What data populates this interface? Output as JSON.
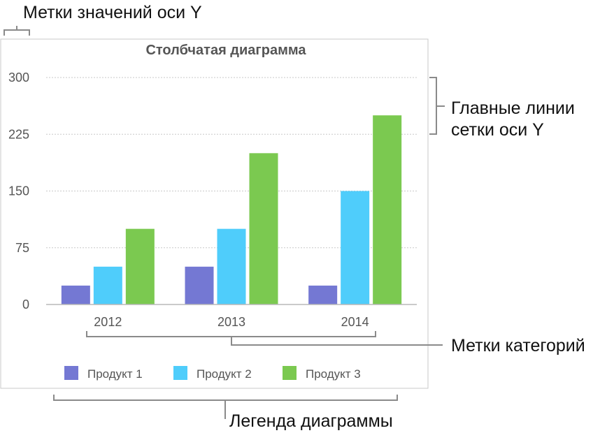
{
  "annotations": {
    "y_value_labels": "Метки значений оси Y",
    "y_gridlines_line1": "Главные линии",
    "y_gridlines_line2": "сетки оси Y",
    "category_labels": "Метки категорий",
    "chart_legend": "Легенда диаграммы"
  },
  "colors": {
    "series": [
      "#7478d3",
      "#4fcdfb",
      "#7bc950"
    ],
    "grid": "#c8c8c8",
    "frame": "#c8c8c8",
    "bracket": "#8a8a8a"
  },
  "chart_data": {
    "type": "bar",
    "title": "Столбчатая диаграмма",
    "xlabel": "",
    "ylabel": "",
    "ylim": [
      0,
      300
    ],
    "yticks": [
      0,
      75,
      150,
      225,
      300
    ],
    "grid": true,
    "legend_position": "bottom",
    "categories": [
      "2012",
      "2013",
      "2014"
    ],
    "series": [
      {
        "name": "Продукт 1",
        "values": [
          25,
          50,
          25
        ]
      },
      {
        "name": "Продукт 2",
        "values": [
          50,
          100,
          150
        ]
      },
      {
        "name": "Продукт 3",
        "values": [
          100,
          200,
          250
        ]
      }
    ]
  }
}
